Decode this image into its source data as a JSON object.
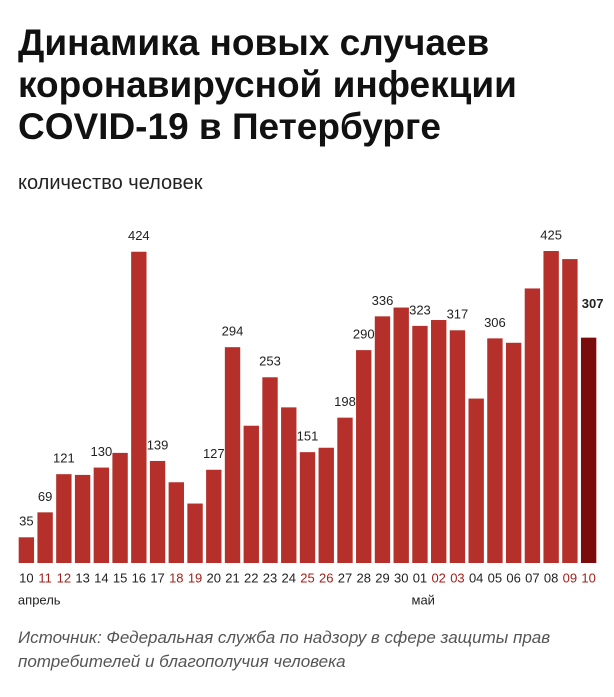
{
  "chart_data": {
    "type": "bar",
    "title": "Динамика новых случаев коронавирусной инфекции COVID-19 в Петербурге",
    "subtitle": "количество человек",
    "source": "Источник: Федеральная служба по надзору в сфере защиты прав потребителей и благополучия человека",
    "categories": [
      "10",
      "11",
      "12",
      "13",
      "14",
      "15",
      "16",
      "17",
      "18",
      "19",
      "20",
      "21",
      "22",
      "23",
      "24",
      "25",
      "26",
      "27",
      "28",
      "29",
      "30",
      "01",
      "02",
      "03",
      "04",
      "05",
      "06",
      "07",
      "08",
      "09",
      "10"
    ],
    "category_colors": [
      "#222",
      "#a3201a",
      "#a3201a",
      "#222",
      "#222",
      "#222",
      "#222",
      "#222",
      "#a3201a",
      "#a3201a",
      "#222",
      "#222",
      "#222",
      "#222",
      "#222",
      "#a3201a",
      "#a3201a",
      "#222",
      "#222",
      "#222",
      "#222",
      "#222",
      "#a3201a",
      "#a3201a",
      "#222",
      "#222",
      "#222",
      "#222",
      "#222",
      "#a3201a",
      "#a3201a"
    ],
    "month_categories": [
      "апрель",
      null,
      null,
      null,
      null,
      null,
      null,
      null,
      null,
      null,
      null,
      null,
      null,
      null,
      null,
      null,
      null,
      null,
      null,
      null,
      null,
      "май",
      null,
      null,
      null,
      null,
      null,
      null,
      null,
      null,
      null
    ],
    "values": [
      35,
      69,
      121,
      120,
      130,
      150,
      424,
      139,
      110,
      81,
      127,
      294,
      187,
      253,
      212,
      151,
      157,
      198,
      290,
      336,
      348,
      323,
      331,
      317,
      224,
      306,
      300,
      374,
      425,
      414,
      307
    ],
    "show_label": [
      true,
      true,
      true,
      false,
      true,
      false,
      true,
      true,
      false,
      false,
      true,
      true,
      false,
      true,
      false,
      true,
      false,
      true,
      true,
      true,
      false,
      true,
      false,
      true,
      false,
      true,
      false,
      false,
      true,
      false,
      true
    ],
    "colors": [
      "#b5302a",
      "#b5302a",
      "#b5302a",
      "#b5302a",
      "#b5302a",
      "#b5302a",
      "#b5302a",
      "#b5302a",
      "#b5302a",
      "#b5302a",
      "#b5302a",
      "#b5302a",
      "#b5302a",
      "#b5302a",
      "#b5302a",
      "#b5302a",
      "#b5302a",
      "#b5302a",
      "#b5302a",
      "#b5302a",
      "#b5302a",
      "#b5302a",
      "#b5302a",
      "#b5302a",
      "#b5302a",
      "#b5302a",
      "#b5302a",
      "#b5302a",
      "#b5302a",
      "#b5302a",
      "#7b0c0c"
    ],
    "ylim": [
      0,
      440
    ]
  }
}
